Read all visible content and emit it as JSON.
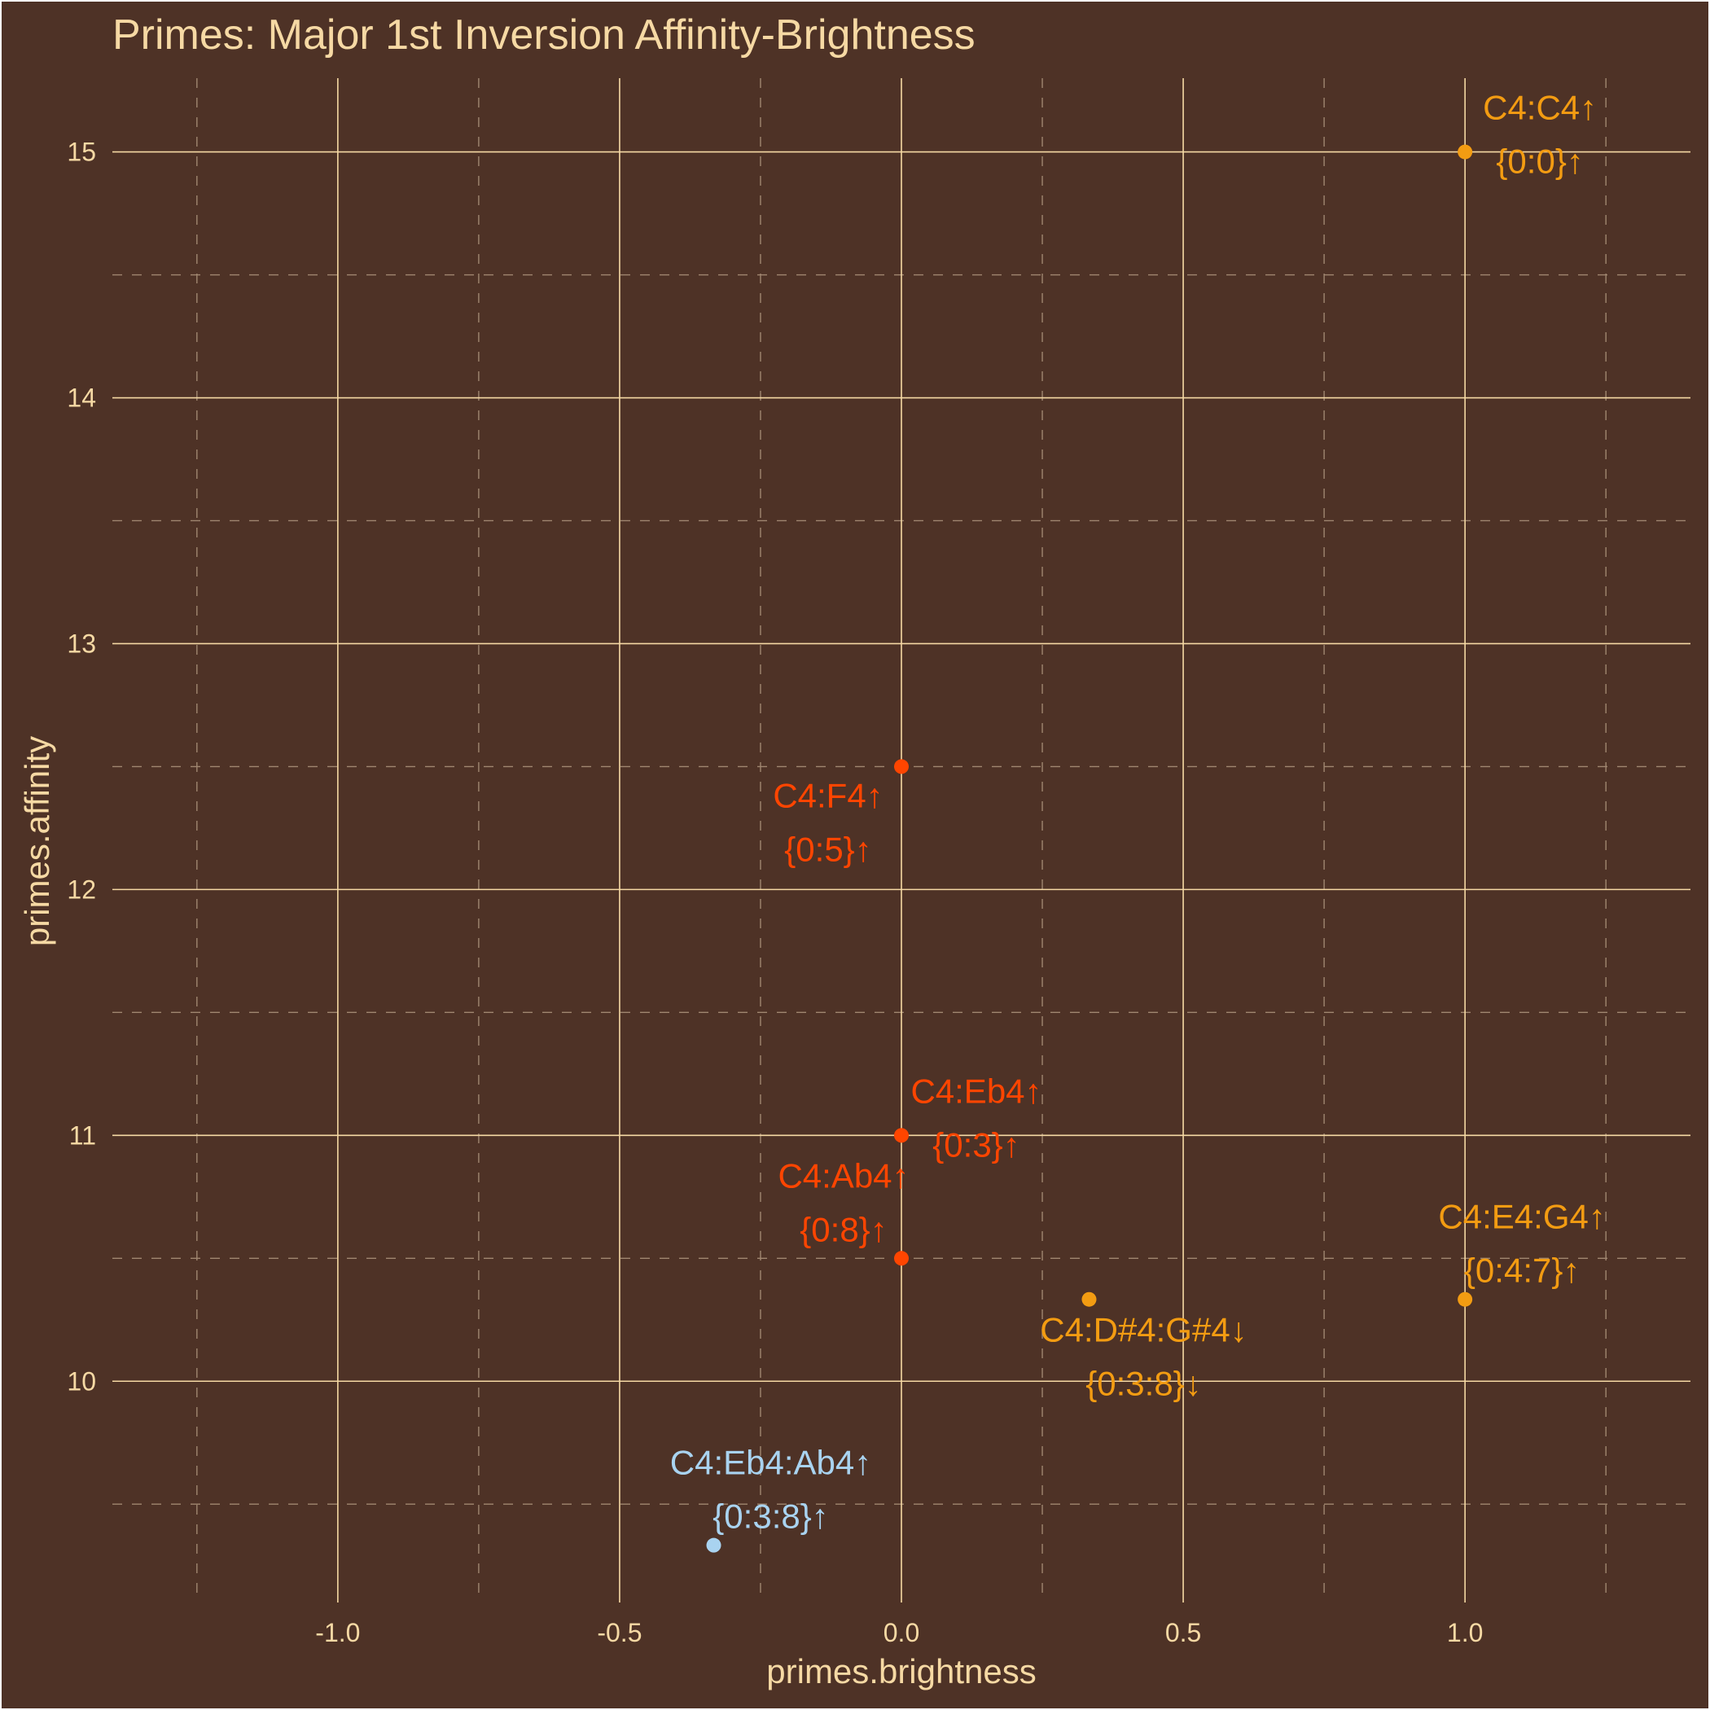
{
  "chart_data": {
    "type": "scatter",
    "title": "Primes: Major 1st Inversion Affinity-Brightness",
    "xlabel": "primes.brightness",
    "ylabel": "primes.affinity",
    "xlim": [
      -1.4,
      1.4
    ],
    "ylim": [
      9.1,
      15.3
    ],
    "x_ticks": [
      -1.0,
      -0.5,
      0.0,
      0.5,
      1.0
    ],
    "x_tick_labels": [
      "-1.0",
      "-0.5",
      "0.0",
      "0.5",
      "1.0"
    ],
    "y_ticks": [
      10,
      11,
      12,
      13,
      14,
      15
    ],
    "y_tick_labels": [
      "10",
      "11",
      "12",
      "13",
      "14",
      "15"
    ],
    "x_minor": [
      -1.25,
      -0.75,
      -0.25,
      0.25,
      0.75,
      1.25
    ],
    "y_minor": [
      9.5,
      10.5,
      11.5,
      12.5,
      13.5,
      14.5
    ],
    "grid": true,
    "points": [
      {
        "x": 1.0,
        "y": 15.0,
        "color": "#f39c12",
        "label1": "C4:C4↑",
        "label2": "{0:0}↑",
        "placement": "above-right"
      },
      {
        "x": 0.0,
        "y": 12.5,
        "color": "#ff4500",
        "label1": "C4:F4↑",
        "label2": "{0:5}↑",
        "placement": "below-left"
      },
      {
        "x": 0.0,
        "y": 11.0,
        "color": "#ff4500",
        "label1": "C4:Eb4↑",
        "label2": "{0:3}↑",
        "placement": "above-right"
      },
      {
        "x": 0.0,
        "y": 10.5,
        "color": "#ff4500",
        "label1": "C4:Ab4↑",
        "label2": "{0:8}↑",
        "placement": "above-left"
      },
      {
        "x": 0.333,
        "y": 10.333,
        "color": "#f39c12",
        "label1": "C4:D#4:G#4↓",
        "label2": "{0:3:8}↓",
        "placement": "below-right"
      },
      {
        "x": 1.0,
        "y": 10.333,
        "color": "#f39c12",
        "label1": "C4:E4:G4↑",
        "label2": "{0:4:7}↑",
        "placement": "above"
      },
      {
        "x": -0.333,
        "y": 9.333,
        "color": "#a9d3f0",
        "label1": "C4:Eb4:Ab4↑",
        "label2": "{0:3:8}↑",
        "placement": "above"
      }
    ]
  }
}
